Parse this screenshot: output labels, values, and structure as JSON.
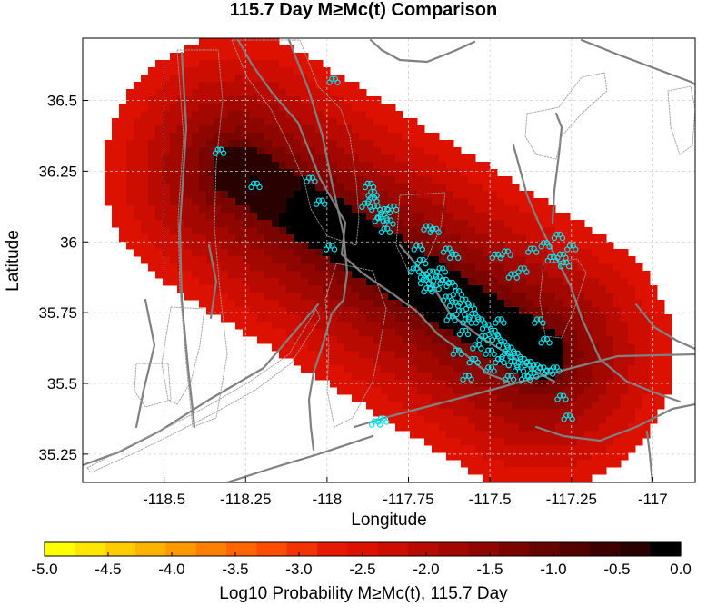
{
  "chart_data": {
    "type": "heatmap",
    "title": "115.7 Day M≥Mc(t) Comparison",
    "xlabel": "Longitude",
    "ylabel": "Latitude",
    "xlim": [
      -118.75,
      -116.87
    ],
    "ylim": [
      35.15,
      36.72
    ],
    "xticks": [
      -118.5,
      -118.25,
      -118,
      -117.75,
      -117.5,
      -117.25,
      -117
    ],
    "xtick_labels": [
      "-118.5",
      "-118.25",
      "-118",
      "-117.75",
      "-117.5",
      "-117.25",
      "-117"
    ],
    "yticks": [
      35.25,
      35.5,
      35.75,
      36,
      36.25,
      36.5
    ],
    "ytick_labels": [
      "35.25",
      "35.5",
      "35.75",
      "36",
      "36.25",
      "36.5"
    ],
    "grid": true,
    "colorbar": {
      "label": "Log10 Probability M≥Mc(t), 115.7 Day",
      "range": [
        -5.0,
        0.0
      ],
      "ticks": [
        -5.0,
        -4.5,
        -4.0,
        -3.5,
        -3.0,
        -2.5,
        -2.0,
        -1.5,
        -1.0,
        -0.5,
        0.0
      ],
      "tick_labels": [
        "-5.0",
        "-4.5",
        "-4.0",
        "-3.5",
        "-3.0",
        "-2.5",
        "-2.0",
        "-1.5",
        "-1.0",
        "-0.5",
        "0.0"
      ],
      "colors": [
        "#ffff00",
        "#ffe600",
        "#ffcc00",
        "#ffb300",
        "#ff9900",
        "#ff8000",
        "#ff6600",
        "#ff4d00",
        "#f23300",
        "#e61a00",
        "#dd1100",
        "#cc0d00",
        "#b80a00",
        "#a30800",
        "#8f0600",
        "#7a0500",
        "#660400",
        "#520300",
        "#3d0200",
        "#290100",
        "#000000"
      ]
    },
    "probability_field": {
      "description": "elongated high-probability swath oriented NW-SE",
      "axis_start": [
        -118.27,
        36.25
      ],
      "axis_end": [
        -117.35,
        35.6
      ],
      "outer_value": -2.6,
      "peak_value": 0.0
    },
    "events": {
      "marker_color": "#00e5ee",
      "points": [
        [
          -117.98,
          36.57
        ],
        [
          -118.33,
          36.32
        ],
        [
          -118.22,
          36.2
        ],
        [
          -118.05,
          36.22
        ],
        [
          -118.02,
          36.14
        ],
        [
          -117.99,
          35.98
        ],
        [
          -117.87,
          36.2
        ],
        [
          -117.86,
          36.17
        ],
        [
          -117.88,
          36.13
        ],
        [
          -117.85,
          36.12
        ],
        [
          -117.82,
          36.11
        ],
        [
          -117.84,
          36.08
        ],
        [
          -117.81,
          36.07
        ],
        [
          -117.86,
          36.15
        ],
        [
          -117.83,
          36.09
        ],
        [
          -117.8,
          36.12
        ],
        [
          -117.82,
          36.04
        ],
        [
          -117.69,
          36.05
        ],
        [
          -117.67,
          36.04
        ],
        [
          -117.72,
          35.98
        ],
        [
          -117.71,
          35.93
        ],
        [
          -117.63,
          35.97
        ],
        [
          -117.61,
          35.95
        ],
        [
          -117.73,
          35.9
        ],
        [
          -117.7,
          35.88
        ],
        [
          -117.68,
          35.89
        ],
        [
          -117.66,
          35.87
        ],
        [
          -117.64,
          35.86
        ],
        [
          -117.62,
          35.85
        ],
        [
          -117.65,
          35.9
        ],
        [
          -117.67,
          35.84
        ],
        [
          -117.6,
          35.82
        ],
        [
          -117.58,
          35.79
        ],
        [
          -117.56,
          35.77
        ],
        [
          -117.55,
          35.74
        ],
        [
          -117.53,
          35.72
        ],
        [
          -117.51,
          35.7
        ],
        [
          -117.49,
          35.68
        ],
        [
          -117.48,
          35.66
        ],
        [
          -117.46,
          35.64
        ],
        [
          -117.44,
          35.62
        ],
        [
          -117.42,
          35.6
        ],
        [
          -117.4,
          35.58
        ],
        [
          -117.38,
          35.57
        ],
        [
          -117.36,
          35.56
        ],
        [
          -117.34,
          35.55
        ],
        [
          -117.32,
          35.54
        ],
        [
          -117.3,
          35.55
        ],
        [
          -117.52,
          35.66
        ],
        [
          -117.54,
          35.63
        ],
        [
          -117.5,
          35.61
        ],
        [
          -117.47,
          35.58
        ],
        [
          -117.45,
          35.6
        ],
        [
          -117.43,
          35.57
        ],
        [
          -117.41,
          35.55
        ],
        [
          -117.37,
          35.53
        ],
        [
          -117.39,
          35.52
        ],
        [
          -117.47,
          35.72
        ],
        [
          -117.57,
          35.72
        ],
        [
          -117.59,
          35.75
        ],
        [
          -117.61,
          35.78
        ],
        [
          -117.63,
          35.8
        ],
        [
          -117.69,
          35.83
        ],
        [
          -117.7,
          35.86
        ],
        [
          -117.55,
          35.58
        ],
        [
          -117.5,
          35.55
        ],
        [
          -117.44,
          35.52
        ],
        [
          -117.58,
          35.68
        ],
        [
          -117.62,
          35.73
        ],
        [
          -117.48,
          35.95
        ],
        [
          -117.45,
          35.96
        ],
        [
          -117.43,
          35.88
        ],
        [
          -117.4,
          35.9
        ],
        [
          -117.37,
          35.97
        ],
        [
          -117.33,
          35.99
        ],
        [
          -117.31,
          35.94
        ],
        [
          -117.28,
          35.95
        ],
        [
          -117.29,
          36.02
        ],
        [
          -117.25,
          35.98
        ],
        [
          -117.27,
          35.92
        ],
        [
          -117.35,
          35.72
        ],
        [
          -117.33,
          35.65
        ],
        [
          -117.28,
          35.45
        ],
        [
          -117.26,
          35.38
        ],
        [
          -117.83,
          35.37
        ],
        [
          -117.85,
          35.36
        ],
        [
          -117.57,
          35.52
        ],
        [
          -117.6,
          35.61
        ]
      ]
    }
  }
}
